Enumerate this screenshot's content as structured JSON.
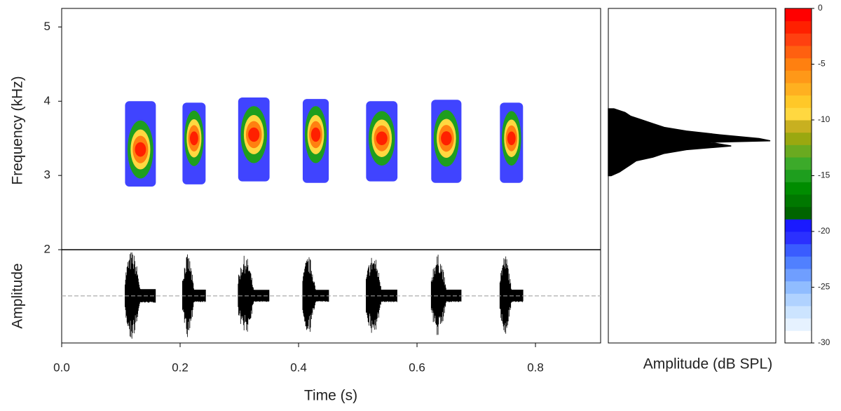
{
  "chart_data": [
    {
      "type": "spectrogram",
      "ylabel": "Frequency (kHz)",
      "xlabel": "Time (s)",
      "xlim": [
        0,
        0.91
      ],
      "xticks": [
        {
          "value": 0,
          "label": "0.0"
        },
        0.2,
        0.4,
        0.6,
        0.8
      ],
      "ylim": [
        2,
        5.25
      ],
      "yticks": [
        2,
        3,
        4,
        5
      ],
      "calls": [
        {
          "start": 0.107,
          "end": 0.159,
          "low": 2.85,
          "high": 4.0,
          "peak": 3.35
        },
        {
          "start": 0.204,
          "end": 0.243,
          "low": 2.88,
          "high": 3.98,
          "peak": 3.5
        },
        {
          "start": 0.298,
          "end": 0.351,
          "low": 2.92,
          "high": 4.05,
          "peak": 3.55
        },
        {
          "start": 0.407,
          "end": 0.451,
          "low": 2.9,
          "high": 4.03,
          "peak": 3.55
        },
        {
          "start": 0.514,
          "end": 0.567,
          "low": 2.92,
          "high": 4.0,
          "peak": 3.5
        },
        {
          "start": 0.624,
          "end": 0.675,
          "low": 2.9,
          "high": 4.02,
          "peak": 3.5
        },
        {
          "start": 0.74,
          "end": 0.779,
          "low": 2.9,
          "high": 3.98,
          "peak": 3.5
        }
      ]
    },
    {
      "type": "waveform",
      "ylabel": "Amplitude",
      "ylim": [
        -1.02,
        1
      ],
      "bursts": [
        {
          "start": 0.107,
          "end": 0.159,
          "amplitude": 0.98
        },
        {
          "start": 0.204,
          "end": 0.243,
          "amplitude": 0.9
        },
        {
          "start": 0.298,
          "end": 0.351,
          "amplitude": 0.88
        },
        {
          "start": 0.407,
          "end": 0.451,
          "amplitude": 0.86
        },
        {
          "start": 0.514,
          "end": 0.567,
          "amplitude": 0.9
        },
        {
          "start": 0.624,
          "end": 0.675,
          "amplitude": 0.9
        },
        {
          "start": 0.74,
          "end": 0.779,
          "amplitude": 0.9
        }
      ]
    },
    {
      "type": "spectrum",
      "xlabel": "Amplitude (dB SPL)",
      "xlim": [
        -30,
        0
      ],
      "ylim": [
        0.75,
        5.25
      ],
      "color": "#000000",
      "x": [
        3.0,
        3.05,
        3.1,
        3.15,
        3.2,
        3.25,
        3.3,
        3.35,
        3.4,
        3.45,
        3.47,
        3.5,
        3.55,
        3.6,
        3.65,
        3.7,
        3.75,
        3.8,
        3.85,
        3.9
      ],
      "values": [
        -29.5,
        -28,
        -27,
        -26,
        -25,
        -22,
        -20,
        -16,
        -8,
        -12,
        -1,
        -3,
        -10,
        -16,
        -20,
        -22,
        -24,
        -26,
        -27,
        -29
      ]
    },
    {
      "type": "colorbar",
      "ylim": [
        -30,
        0
      ],
      "yticks": [
        -30,
        -25,
        -20,
        -15,
        -10,
        -5,
        0
      ],
      "colors": [
        "#ffffff",
        "#e6f2ff",
        "#cce4ff",
        "#b0d2ff",
        "#90bcff",
        "#6f9eff",
        "#5080ff",
        "#3a5cff",
        "#2b30ff",
        "#1a1aff",
        "#006400",
        "#007800",
        "#008c00",
        "#1e9e1e",
        "#3caa2a",
        "#6aaa20",
        "#9aa810",
        "#c8b020",
        "#ffd840",
        "#ffc828",
        "#ffb020",
        "#ff9818",
        "#ff8010",
        "#ff6010",
        "#ff4010",
        "#ff2000",
        "#ff0000"
      ]
    }
  ]
}
